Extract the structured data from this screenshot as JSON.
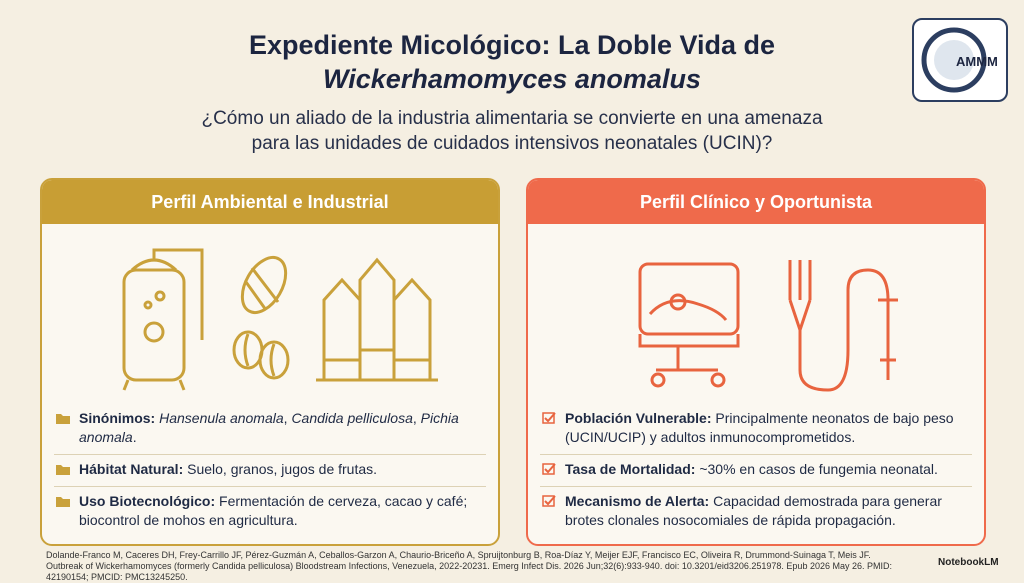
{
  "header": {
    "title_line1": "Expediente Micológico: La Doble Vida de",
    "title_line2": "Wickerhamomyces anomalus",
    "subtitle_lines": [
      "¿Cómo un aliado de la industria alimentaria se convierte en una amenaza",
      "para las unidades de cuidados intensivos neonatales (UCIN)?"
    ],
    "logo": "AMMM"
  },
  "left": {
    "title": "Perfil Ambiental e Industrial",
    "items": [
      {
        "label": "Sinónimos:",
        "parts": [
          {
            "text": "Hansenula anomala",
            "italic": true
          },
          {
            "text": ", "
          },
          {
            "text": "Candida pelliculosa",
            "italic": true
          },
          {
            "text": ", "
          },
          {
            "text": "Pichia anomala",
            "italic": true
          },
          {
            "text": "."
          }
        ]
      },
      {
        "label": "Hábitat Natural:",
        "parts": [
          {
            "text": "Suelo, granos, jugos de frutas."
          }
        ]
      },
      {
        "label": "Uso Biotecnológico:",
        "parts": [
          {
            "text": "Fermentación de cerveza, cacao y café; biocontrol de mohos en agricultura."
          }
        ]
      }
    ]
  },
  "right": {
    "title": "Perfil Clínico y Oportunista",
    "items": [
      {
        "label": "Población Vulnerable:",
        "parts": [
          {
            "text": "Principalmente neonatos de bajo peso (UCIN/UCIP) y adultos inmunocomprometidos."
          }
        ]
      },
      {
        "label": "Tasa de Mortalidad:",
        "parts": [
          {
            "text": "~30% en casos de fungemia neonatal."
          }
        ]
      },
      {
        "label": "Mecanismo de Alerta:",
        "parts": [
          {
            "text": "Capacidad demostrada para generar brotes clonales nosocomiales de rápida propagación."
          }
        ]
      }
    ]
  },
  "footer": {
    "citation": "Dolande-Franco M, Caceres DH, Frey-Carrillo JF, Pérez-Guzmán A, Ceballos-Garzon A, Chaurio-Briceño A, Spruijtonburg B, Roa-Díaz Y, Meijer EJF, Francisco EC, Oliveira R, Drummond-Suinaga T, Meis JF. Outbreak of Wickerhamomyces (formerly Candida pelliculosa) Bloodstream Infections, Venezuela, 2022-20231. Emerg Infect Dis. 2026 Jun;32(6):933-940. doi: 10.3201/eid3206.251978. Epub 2026 May 26. PMID: 42190154; PMCID: PMC13245250.",
    "brand": "NotebookLM"
  }
}
